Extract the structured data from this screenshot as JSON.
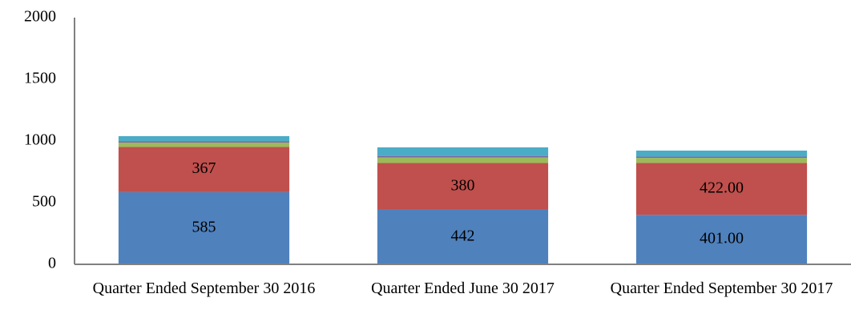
{
  "chart_data": {
    "type": "bar",
    "stacked": true,
    "categories": [
      "Quarter Ended September 30 2016",
      "Quarter Ended June 30 2017",
      "Quarter Ended September 30 2017"
    ],
    "series": [
      {
        "color": "#4f81bd",
        "values": [
          585,
          442,
          401
        ],
        "value_labels": [
          "585",
          "442",
          "401.00"
        ]
      },
      {
        "color": "#c0504d",
        "values": [
          367,
          380,
          422
        ],
        "value_labels": [
          "367",
          "380",
          "422.00"
        ]
      },
      {
        "color": "#9bbb59",
        "values": [
          35,
          45,
          40
        ]
      },
      {
        "color": "#8064a2",
        "values": [
          12,
          10,
          10
        ]
      },
      {
        "color": "#4bacc6",
        "values": [
          40,
          71,
          49
        ]
      }
    ],
    "ylim": [
      0,
      2000
    ],
    "yticks": [
      0,
      500,
      1000,
      1500,
      2000
    ],
    "grid": false
  }
}
